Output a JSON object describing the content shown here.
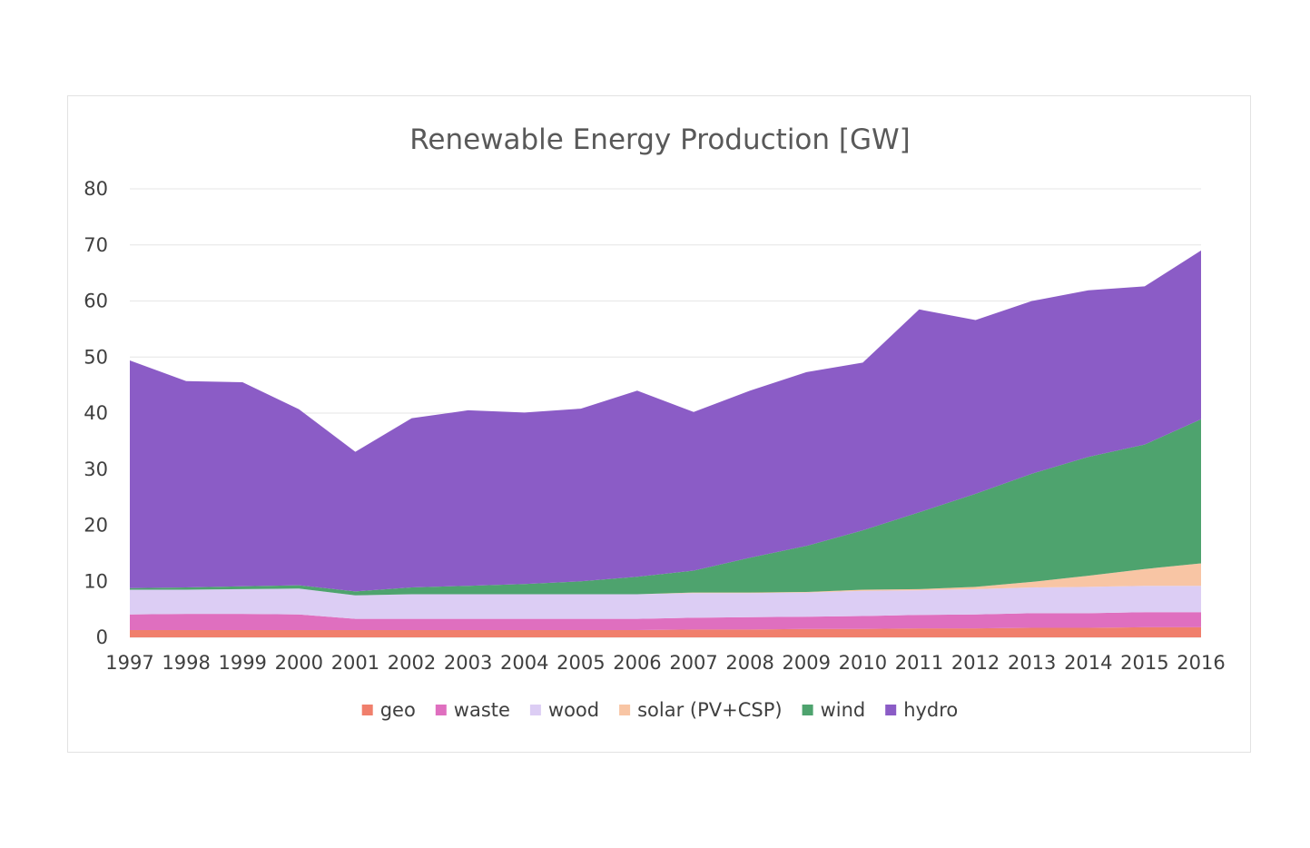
{
  "chart_data": {
    "type": "area",
    "stacked": true,
    "title": "Renewable Energy Production [GW]",
    "xlabel": "",
    "ylabel": "",
    "ylim": [
      0,
      80
    ],
    "yticks": [
      0,
      10,
      20,
      30,
      40,
      50,
      60,
      70,
      80
    ],
    "grid": "horizontal",
    "legend_position": "bottom",
    "x": [
      "1997",
      "1998",
      "1999",
      "2000",
      "2001",
      "2002",
      "2003",
      "2004",
      "2005",
      "2006",
      "2007",
      "2008",
      "2009",
      "2010",
      "2011",
      "2012",
      "2013",
      "2014",
      "2015",
      "2016"
    ],
    "series": [
      {
        "name": "geo",
        "color": "#f07f6c",
        "values": [
          1.3,
          1.3,
          1.3,
          1.3,
          1.3,
          1.3,
          1.3,
          1.3,
          1.3,
          1.3,
          1.4,
          1.4,
          1.5,
          1.5,
          1.6,
          1.6,
          1.7,
          1.7,
          1.8,
          1.8
        ]
      },
      {
        "name": "waste",
        "color": "#df6fbf",
        "values": [
          2.8,
          2.9,
          2.9,
          2.8,
          2.0,
          2.0,
          2.0,
          2.0,
          2.0,
          2.0,
          2.1,
          2.2,
          2.2,
          2.3,
          2.4,
          2.5,
          2.6,
          2.6,
          2.7,
          2.7
        ]
      },
      {
        "name": "wood",
        "color": "#dccdf4",
        "values": [
          4.4,
          4.3,
          4.4,
          4.6,
          4.2,
          4.4,
          4.4,
          4.4,
          4.4,
          4.4,
          4.4,
          4.3,
          4.3,
          4.5,
          4.4,
          4.5,
          4.6,
          4.7,
          4.7,
          4.7
        ]
      },
      {
        "name": "solar (PV+CSP)",
        "color": "#f8c5a4",
        "values": [
          0.0,
          0.0,
          0.0,
          0.0,
          0.0,
          0.0,
          0.0,
          0.0,
          0.0,
          0.0,
          0.1,
          0.1,
          0.1,
          0.2,
          0.2,
          0.4,
          1.0,
          2.0,
          3.0,
          4.0
        ]
      },
      {
        "name": "wind",
        "color": "#4ea36e",
        "values": [
          0.3,
          0.4,
          0.5,
          0.6,
          0.7,
          1.2,
          1.5,
          1.8,
          2.3,
          3.1,
          3.9,
          6.2,
          8.2,
          10.6,
          13.7,
          16.6,
          19.3,
          21.2,
          22.2,
          25.7
        ]
      },
      {
        "name": "hydro",
        "color": "#8b5cc6",
        "values": [
          40.6,
          36.8,
          36.4,
          31.4,
          24.9,
          30.2,
          31.3,
          30.6,
          30.8,
          33.2,
          28.3,
          29.8,
          31.0,
          29.9,
          36.2,
          31.0,
          30.8,
          29.7,
          28.2,
          30.1
        ]
      }
    ]
  }
}
